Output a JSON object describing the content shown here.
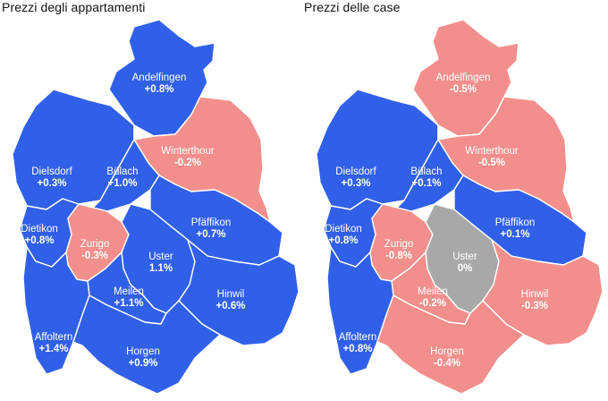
{
  "colors": {
    "increase": "#3160e8",
    "decrease": "#f28f8c",
    "neutral": "#a8a8a8"
  },
  "maps": [
    {
      "title": "Prezzi degli appartamenti",
      "districts": [
        {
          "id": "andelfingen",
          "name": "Andelfingen",
          "value": "+0.8%",
          "trend": "increase"
        },
        {
          "id": "winterthour",
          "name": "Winterthour",
          "value": "-0.2%",
          "trend": "decrease"
        },
        {
          "id": "dielsdorf",
          "name": "Dielsdorf",
          "value": "+0.3%",
          "trend": "increase"
        },
        {
          "id": "bulach",
          "name": "Bülach",
          "value": "+1.0%",
          "trend": "increase"
        },
        {
          "id": "pfaffikon",
          "name": "Pfäffikon",
          "value": "+0.7%",
          "trend": "increase"
        },
        {
          "id": "dietikon",
          "name": "Dietikon",
          "value": "+0.8%",
          "trend": "increase"
        },
        {
          "id": "zurigo",
          "name": "Zurigo",
          "value": "-0.3%",
          "trend": "decrease"
        },
        {
          "id": "uster",
          "name": "Uster",
          "value": "1.1%",
          "trend": "increase"
        },
        {
          "id": "meilen",
          "name": "Meilen",
          "value": "+1.1%",
          "trend": "increase"
        },
        {
          "id": "hinwil",
          "name": "Hinwil",
          "value": "+0.6%",
          "trend": "increase"
        },
        {
          "id": "affoltern",
          "name": "Affoltern",
          "value": "+1.4%",
          "trend": "increase"
        },
        {
          "id": "horgen",
          "name": "Horgen",
          "value": "+0.9%",
          "trend": "increase"
        }
      ]
    },
    {
      "title": "Prezzi delle case",
      "districts": [
        {
          "id": "andelfingen",
          "name": "Andelfingen",
          "value": "-0.5%",
          "trend": "decrease"
        },
        {
          "id": "winterthour",
          "name": "Winterthour",
          "value": "-0.5%",
          "trend": "decrease"
        },
        {
          "id": "dielsdorf",
          "name": "Dielsdorf",
          "value": "+0.3%",
          "trend": "increase"
        },
        {
          "id": "bulach",
          "name": "Bülach",
          "value": "+0.1%",
          "trend": "increase"
        },
        {
          "id": "pfaffikon",
          "name": "Pfäffikon",
          "value": "+0.1%",
          "trend": "increase"
        },
        {
          "id": "dietikon",
          "name": "Dietikon",
          "value": "+0.8%",
          "trend": "increase"
        },
        {
          "id": "zurigo",
          "name": "Zurigo",
          "value": "-0.8%",
          "trend": "decrease"
        },
        {
          "id": "uster",
          "name": "Uster",
          "value": "0%",
          "trend": "neutral"
        },
        {
          "id": "meilen",
          "name": "Meilen",
          "value": "-0.2%",
          "trend": "decrease"
        },
        {
          "id": "hinwil",
          "name": "Hinwil",
          "value": "-0.3%",
          "trend": "decrease"
        },
        {
          "id": "affoltern",
          "name": "Affoltern",
          "value": "+0.8%",
          "trend": "increase"
        },
        {
          "id": "horgen",
          "name": "Horgen",
          "value": "-0.4%",
          "trend": "decrease"
        }
      ]
    }
  ]
}
